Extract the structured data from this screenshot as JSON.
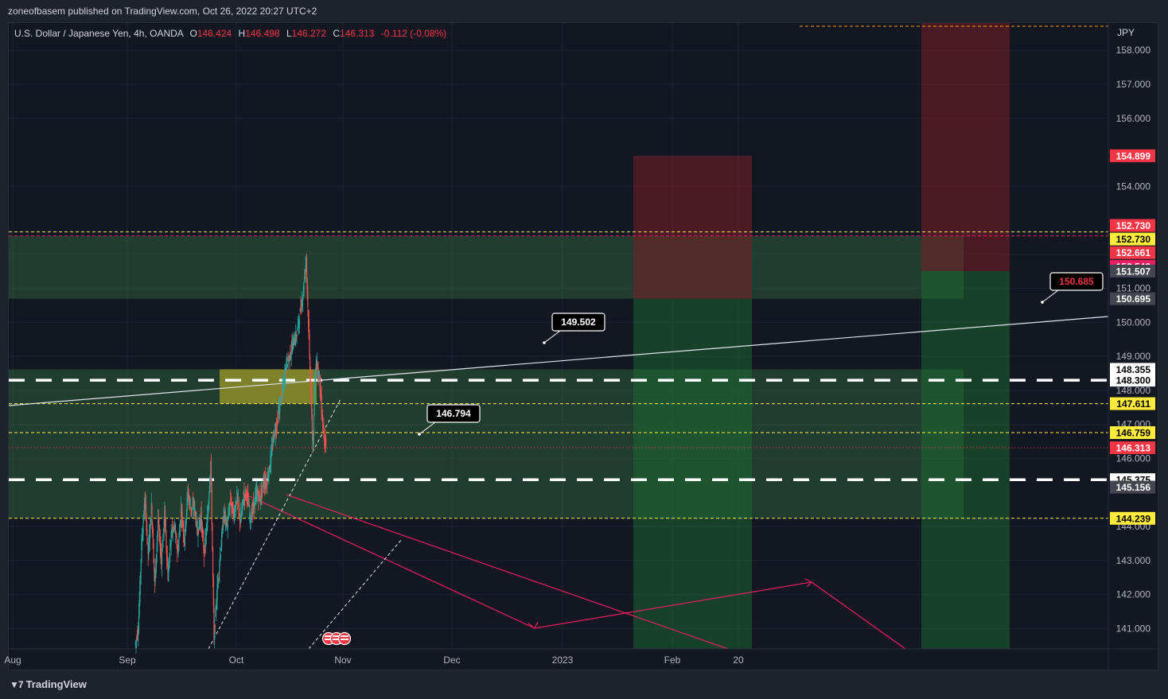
{
  "header": {
    "published": "zoneofbasem published on TradingView.com, Oct 26, 2022 20:27 UTC+2"
  },
  "symbol": {
    "name": "U.S. Dollar / Japanese Yen, 4h, OANDA",
    "open_label": "O",
    "open": "146.424",
    "high_label": "H",
    "high": "146.498",
    "low_label": "L",
    "low": "146.272",
    "close_label": "C",
    "close": "146.313",
    "change": "-0.112 (-0.08%)"
  },
  "footer": {
    "brand": "TradingView",
    "brand_mark": "▼7"
  },
  "colors": {
    "background": "#131722",
    "text": "#d1d4dc",
    "grid": "#1f2330",
    "up": "#26a69a",
    "down": "#ef5350",
    "pink": "#e91e63",
    "yellow_dash": "#ffeb3b",
    "zone_green": "#2e5c3a",
    "stop_red": "#5b1f25",
    "target_green": "#1b4d2a"
  },
  "chart_data": {
    "type": "candlestick",
    "timeframe": "4h",
    "currency": "JPY",
    "x_ticks": [
      "Aug",
      "Sep",
      "Oct",
      "Nov",
      "Dec",
      "2023",
      "Feb",
      "20"
    ],
    "y_ticks": [
      "141.000",
      "142.000",
      "143.000",
      "144.000",
      "146.000",
      "147.000",
      "148.000",
      "149.000",
      "150.000",
      "151.000",
      "152.000",
      "154.000",
      "156.000",
      "157.000",
      "158.000"
    ],
    "ylim": [
      140.4,
      158.8
    ],
    "price_path": [
      [
        0.0,
        140.5
      ],
      [
        0.5,
        141.0
      ],
      [
        1.0,
        143.5
      ],
      [
        1.5,
        144.8
      ],
      [
        2.0,
        143.2
      ],
      [
        2.5,
        144.6
      ],
      [
        3.0,
        142.3
      ],
      [
        3.5,
        144.2
      ],
      [
        4.0,
        143.0
      ],
      [
        4.5,
        144.4
      ],
      [
        5.0,
        142.5
      ],
      [
        5.5,
        143.8
      ],
      [
        6.0,
        144.0
      ],
      [
        6.5,
        143.2
      ],
      [
        7.0,
        144.5
      ],
      [
        7.5,
        143.6
      ],
      [
        8.0,
        145.0
      ],
      [
        8.5,
        144.5
      ],
      [
        9.0,
        144.6
      ],
      [
        9.5,
        143.8
      ],
      [
        10.0,
        144.3
      ],
      [
        10.5,
        143.2
      ],
      [
        11.0,
        144.2
      ],
      [
        11.5,
        145.9
      ],
      [
        12.0,
        140.7
      ],
      [
        12.5,
        142.2
      ],
      [
        13.0,
        143.3
      ],
      [
        13.5,
        144.4
      ],
      [
        14.0,
        144.0
      ],
      [
        14.5,
        144.8
      ],
      [
        15.0,
        144.3
      ],
      [
        15.5,
        144.9
      ],
      [
        16.0,
        144.1
      ],
      [
        16.5,
        144.9
      ],
      [
        17.0,
        145.0
      ],
      [
        17.5,
        144.2
      ],
      [
        18.0,
        144.6
      ],
      [
        18.5,
        145.0
      ],
      [
        19.0,
        144.8
      ],
      [
        19.5,
        145.3
      ],
      [
        20.0,
        145.3
      ],
      [
        20.5,
        145.8
      ],
      [
        21.0,
        146.6
      ],
      [
        21.5,
        147.0
      ],
      [
        22.0,
        147.6
      ],
      [
        22.5,
        148.1
      ],
      [
        23.0,
        148.8
      ],
      [
        23.5,
        149.0
      ],
      [
        24.0,
        149.4
      ],
      [
        24.5,
        149.6
      ],
      [
        25.0,
        150.2
      ],
      [
        25.5,
        150.8
      ],
      [
        26.0,
        151.9
      ],
      [
        26.5,
        149.0
      ],
      [
        27.0,
        146.3
      ],
      [
        27.5,
        148.9
      ],
      [
        28.0,
        148.4
      ],
      [
        28.5,
        147.0
      ],
      [
        29.0,
        146.313
      ]
    ],
    "horizontal_levels": [
      {
        "price": 148.3,
        "label": "148.300",
        "style": "white-dashed-thick"
      },
      {
        "price": 145.375,
        "label": "145.375",
        "style": "white-dashed-thick"
      },
      {
        "price": 152.661,
        "label": "152.661",
        "style": "yellow-dashed"
      },
      {
        "price": 152.542,
        "label": "152.542",
        "style": "pink-dashed"
      },
      {
        "price": 147.611,
        "label": "147.611",
        "style": "yellow-dashed"
      },
      {
        "price": 146.759,
        "label": "146.759",
        "style": "yellow-dashed"
      },
      {
        "price": 144.239,
        "label": "144.239",
        "style": "yellow-dashed"
      },
      {
        "price": 146.313,
        "label": "146.313",
        "style": "current-price"
      }
    ],
    "price_labels": [
      {
        "text": "154.899",
        "price": 154.899,
        "bg": "#f23645",
        "fg": "#ffffff"
      },
      {
        "text": "152.730",
        "price": 152.85,
        "bg": "#f23645",
        "fg": "#ffffff"
      },
      {
        "text": "152.730",
        "price": 152.45,
        "bg": "#ffeb3b",
        "fg": "#000000"
      },
      {
        "text": "152.661",
        "price": 152.05,
        "bg": "#f23645",
        "fg": "#ffffff"
      },
      {
        "text": "152.542",
        "price": 151.65,
        "bg": "#e91e63",
        "fg": "#ffffff"
      },
      {
        "text": "151.507",
        "price": 151.507,
        "bg": "#434651",
        "fg": "#ffffff"
      },
      {
        "text": "150.695",
        "price": 150.695,
        "bg": "#434651",
        "fg": "#ffffff"
      },
      {
        "text": "148.355",
        "price": 148.62,
        "bg": "#ffffff",
        "fg": "#000000"
      },
      {
        "text": "148.300",
        "price": 148.3,
        "bg": "#ffffff",
        "fg": "#000000"
      },
      {
        "text": "147.611",
        "price": 147.611,
        "bg": "#ffeb3b",
        "fg": "#000000"
      },
      {
        "text": "146.759",
        "price": 146.759,
        "bg": "#ffeb3b",
        "fg": "#000000"
      },
      {
        "text": "146.313",
        "price": 146.313,
        "bg": "#f23645",
        "fg": "#ffffff"
      },
      {
        "text": "145.375",
        "price": 145.375,
        "bg": "#ffffff",
        "fg": "#000000"
      },
      {
        "text": "145.156",
        "price": 145.156,
        "bg": "#434651",
        "fg": "#ffffff"
      },
      {
        "text": "144.239",
        "price": 144.239,
        "bg": "#ffeb3b",
        "fg": "#000000"
      }
    ],
    "callouts": [
      {
        "text": "149.502",
        "style": "dark"
      },
      {
        "text": "146.794",
        "style": "dark"
      },
      {
        "text": "150.685",
        "style": "red-text"
      }
    ],
    "zones": [
      {
        "name": "supply-zone",
        "top": 152.542,
        "bottom": 150.695
      },
      {
        "name": "demand-zone",
        "top": 148.62,
        "bottom": 144.239
      },
      {
        "name": "highlight-box",
        "top": 148.62,
        "bottom": 147.611
      }
    ],
    "positions": [
      {
        "name": "position-1",
        "stop": 154.899,
        "entry": 150.695,
        "target": 140.4
      },
      {
        "name": "position-2",
        "stop": 158.8,
        "entry": 151.507,
        "target": 140.4
      }
    ],
    "grid": true
  }
}
